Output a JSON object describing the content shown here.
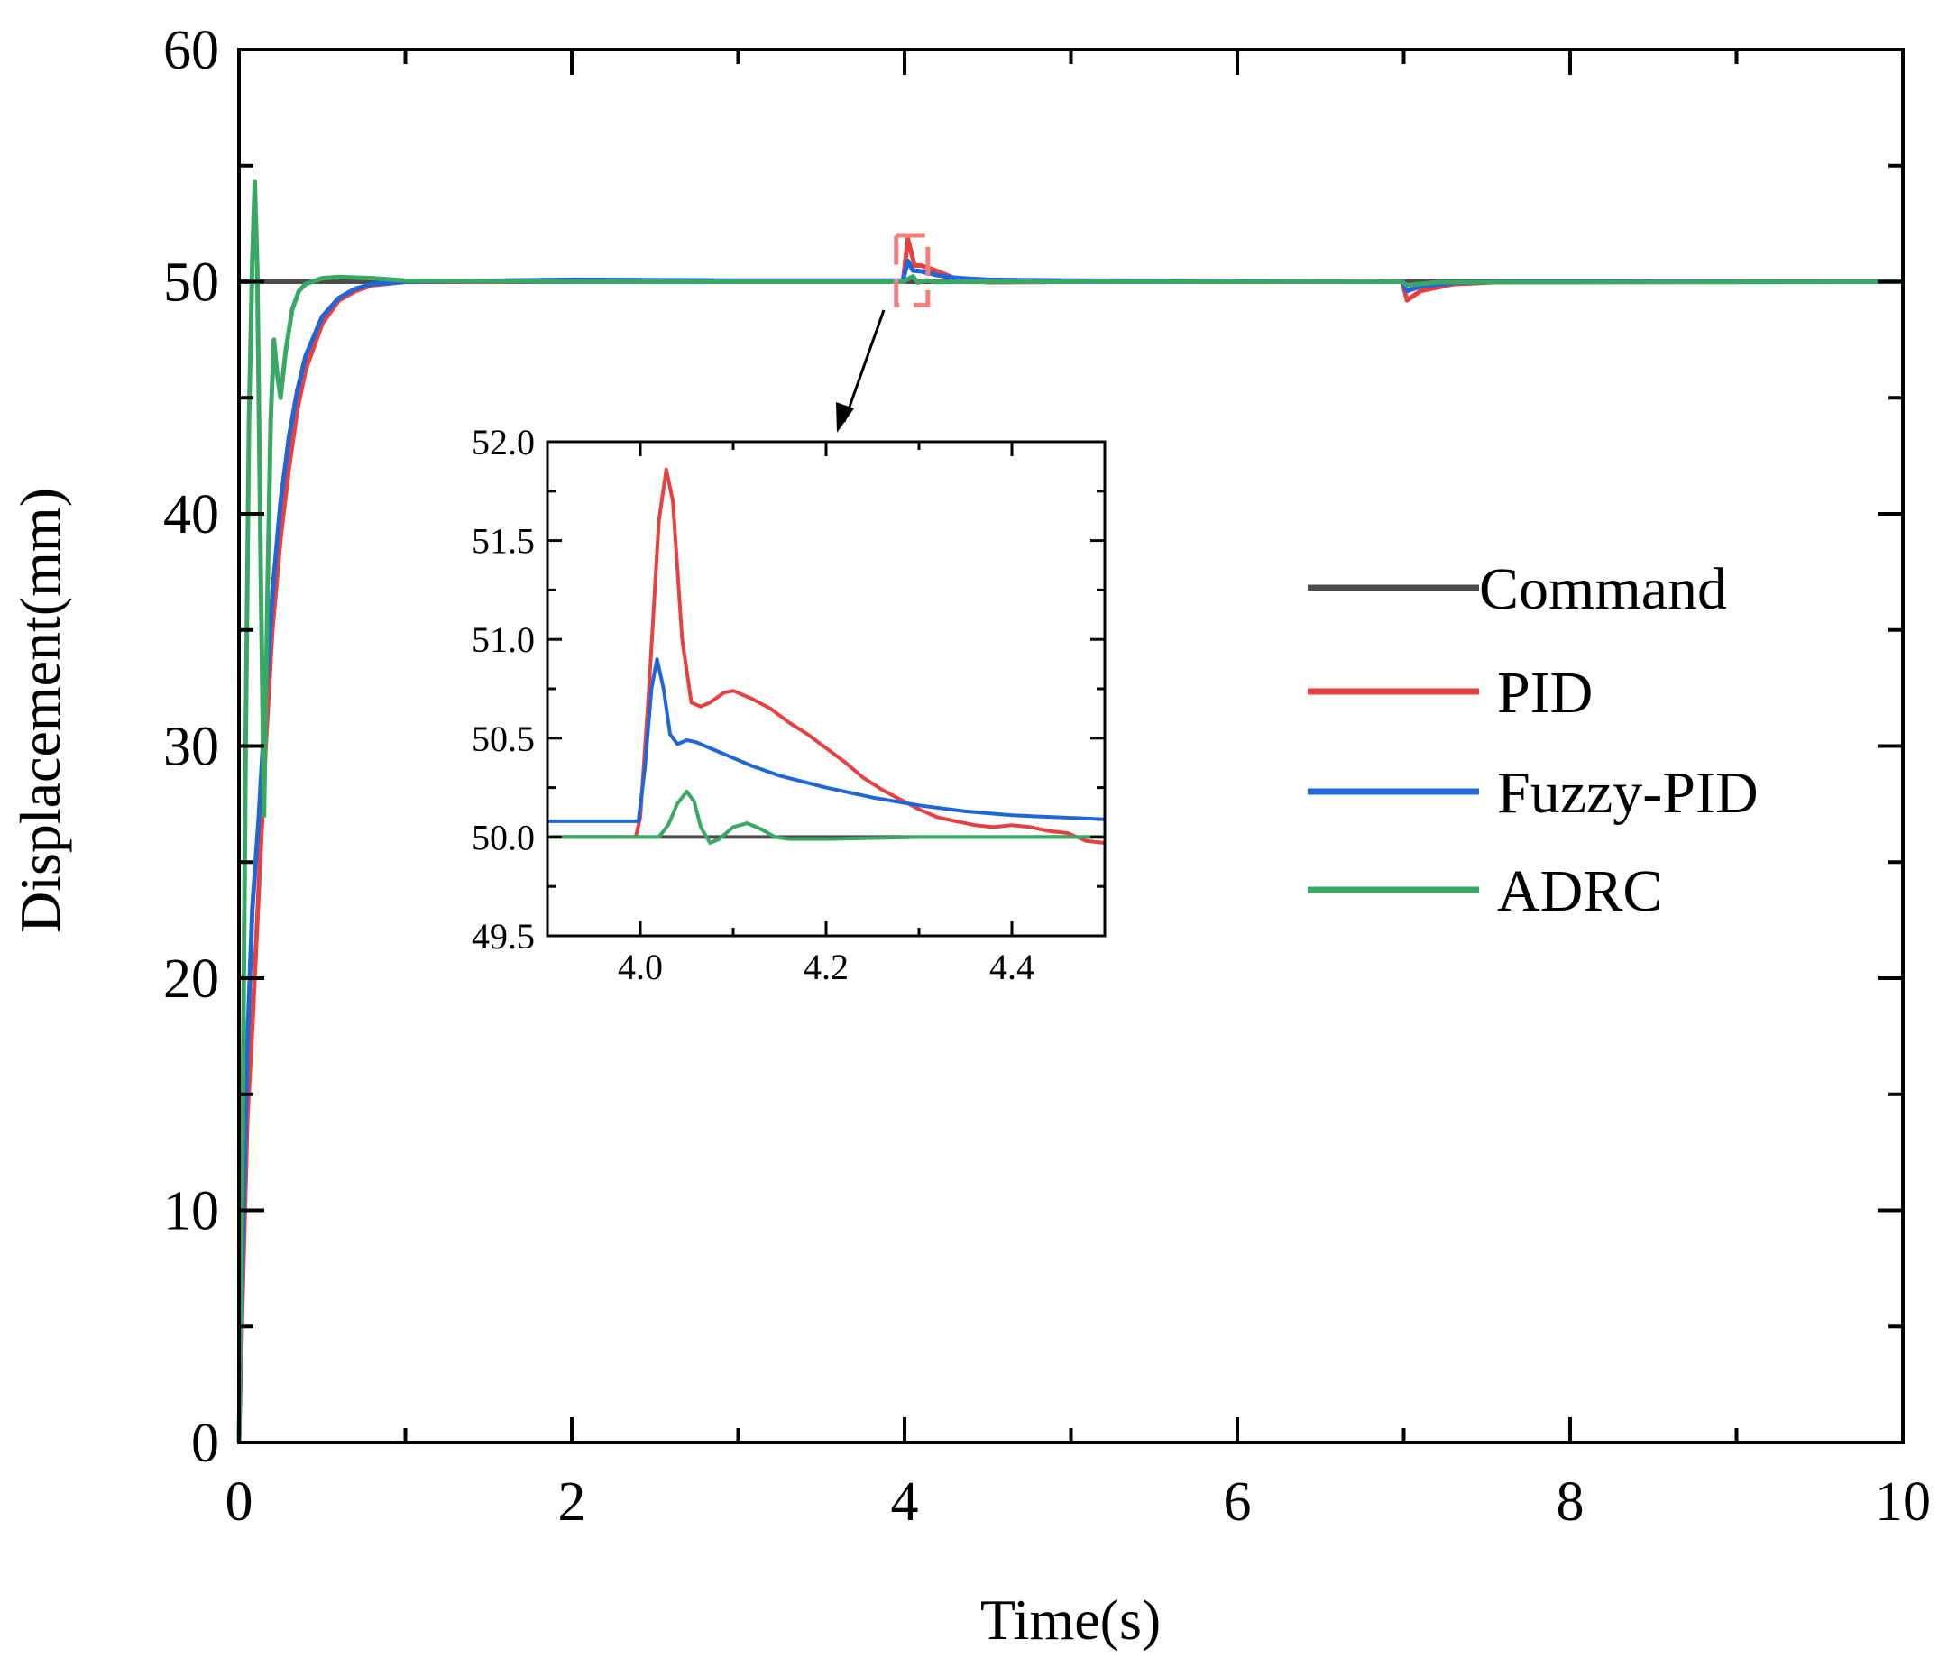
{
  "chart_data": {
    "type": "line",
    "xlabel": "Time(s)",
    "ylabel": "Displacement(mm)",
    "xlim": [
      0,
      10
    ],
    "ylim": [
      0,
      60
    ],
    "xticks": [
      "0",
      "2",
      "4",
      "6",
      "8",
      "10"
    ],
    "yticks": [
      "0",
      "10",
      "20",
      "30",
      "40",
      "50",
      "60"
    ],
    "grid": false,
    "legend_position": "right",
    "series": [
      {
        "name": "Command",
        "color": "#4d4d4d",
        "points": [
          [
            0,
            50
          ],
          [
            4,
            50
          ],
          [
            7,
            50
          ],
          [
            10,
            50
          ]
        ]
      },
      {
        "name": "PID",
        "color": "#e84040",
        "points": [
          [
            0,
            0
          ],
          [
            0.02,
            6
          ],
          [
            0.05,
            14
          ],
          [
            0.08,
            18
          ],
          [
            0.12,
            24
          ],
          [
            0.16,
            30
          ],
          [
            0.2,
            35
          ],
          [
            0.25,
            39
          ],
          [
            0.3,
            42
          ],
          [
            0.35,
            44.5
          ],
          [
            0.4,
            46.2
          ],
          [
            0.5,
            48.2
          ],
          [
            0.6,
            49.2
          ],
          [
            0.7,
            49.6
          ],
          [
            0.8,
            49.85
          ],
          [
            1.0,
            50
          ],
          [
            1.5,
            50
          ],
          [
            2.0,
            50.05
          ],
          [
            3.0,
            50
          ],
          [
            3.99,
            50
          ],
          [
            4.02,
            51.85
          ],
          [
            4.06,
            50.7
          ],
          [
            4.1,
            50.7
          ],
          [
            4.2,
            50.45
          ],
          [
            4.3,
            50.15
          ],
          [
            4.4,
            50.05
          ],
          [
            4.5,
            49.98
          ],
          [
            5.0,
            50
          ],
          [
            6.99,
            50
          ],
          [
            7.02,
            49.2
          ],
          [
            7.1,
            49.6
          ],
          [
            7.3,
            49.9
          ],
          [
            7.6,
            50
          ],
          [
            10,
            50
          ]
        ]
      },
      {
        "name": "Fuzzy-PID",
        "color": "#1f66d9",
        "points": [
          [
            0,
            0
          ],
          [
            0.02,
            8
          ],
          [
            0.05,
            17
          ],
          [
            0.08,
            23
          ],
          [
            0.12,
            27
          ],
          [
            0.16,
            32
          ],
          [
            0.2,
            36.5
          ],
          [
            0.25,
            40.5
          ],
          [
            0.3,
            43.3
          ],
          [
            0.35,
            45.3
          ],
          [
            0.4,
            46.8
          ],
          [
            0.5,
            48.5
          ],
          [
            0.6,
            49.3
          ],
          [
            0.7,
            49.7
          ],
          [
            0.8,
            49.9
          ],
          [
            1.0,
            50
          ],
          [
            2.0,
            50.08
          ],
          [
            3.0,
            50.05
          ],
          [
            3.99,
            50.05
          ],
          [
            4.02,
            50.9
          ],
          [
            4.05,
            50.48
          ],
          [
            4.1,
            50.45
          ],
          [
            4.2,
            50.28
          ],
          [
            4.3,
            50.17
          ],
          [
            4.4,
            50.12
          ],
          [
            4.5,
            50.08
          ],
          [
            5.0,
            50.05
          ],
          [
            6.99,
            50
          ],
          [
            7.02,
            49.6
          ],
          [
            7.1,
            49.8
          ],
          [
            7.3,
            49.95
          ],
          [
            7.6,
            50
          ],
          [
            10,
            50
          ]
        ]
      },
      {
        "name": "ADRC",
        "color": "#3aa865",
        "points": [
          [
            0,
            0
          ],
          [
            0.02,
            12
          ],
          [
            0.04,
            30
          ],
          [
            0.06,
            44
          ],
          [
            0.08,
            51
          ],
          [
            0.095,
            54.3
          ],
          [
            0.11,
            50.5
          ],
          [
            0.13,
            38
          ],
          [
            0.15,
            27
          ],
          [
            0.17,
            36
          ],
          [
            0.19,
            44
          ],
          [
            0.21,
            47.5
          ],
          [
            0.23,
            46
          ],
          [
            0.25,
            45
          ],
          [
            0.28,
            47
          ],
          [
            0.32,
            48.8
          ],
          [
            0.36,
            49.6
          ],
          [
            0.4,
            49.9
          ],
          [
            0.5,
            50.15
          ],
          [
            0.6,
            50.2
          ],
          [
            0.8,
            50.15
          ],
          [
            1.0,
            50.05
          ],
          [
            2.0,
            50
          ],
          [
            3.99,
            50
          ],
          [
            4.05,
            50.23
          ],
          [
            4.08,
            49.97
          ],
          [
            4.13,
            50.06
          ],
          [
            4.18,
            49.99
          ],
          [
            4.5,
            50
          ],
          [
            6.99,
            50
          ],
          [
            7.02,
            49.85
          ],
          [
            7.2,
            49.98
          ],
          [
            10,
            50
          ]
        ]
      }
    ],
    "inset": {
      "xlim": [
        3.9,
        4.5
      ],
      "ylim": [
        49.5,
        52.0
      ],
      "xticks": [
        "4.0",
        "4.2",
        "4.4"
      ],
      "yticks": [
        "49.5",
        "50.0",
        "50.5",
        "51.0",
        "51.5",
        "52.0"
      ],
      "zoom_region": {
        "x": [
          3.95,
          4.14
        ],
        "y": [
          49.0,
          52.0
        ]
      },
      "series": [
        {
          "name": "Command",
          "color": "#4d4d4d",
          "points": [
            [
              3.9,
              50
            ],
            [
              4.5,
              50
            ]
          ]
        },
        {
          "name": "PID",
          "color": "#e84040",
          "points": [
            [
              3.9,
              50
            ],
            [
              3.995,
              50
            ],
            [
              4.0,
              50.1
            ],
            [
              4.01,
              50.8
            ],
            [
              4.02,
              51.6
            ],
            [
              4.028,
              51.86
            ],
            [
              4.035,
              51.7
            ],
            [
              4.045,
              51.0
            ],
            [
              4.055,
              50.68
            ],
            [
              4.065,
              50.66
            ],
            [
              4.075,
              50.68
            ],
            [
              4.09,
              50.73
            ],
            [
              4.1,
              50.74
            ],
            [
              4.12,
              50.7
            ],
            [
              4.14,
              50.65
            ],
            [
              4.16,
              50.58
            ],
            [
              4.18,
              50.52
            ],
            [
              4.2,
              50.45
            ],
            [
              4.22,
              50.38
            ],
            [
              4.24,
              50.3
            ],
            [
              4.26,
              50.24
            ],
            [
              4.28,
              50.19
            ],
            [
              4.3,
              50.14
            ],
            [
              4.32,
              50.1
            ],
            [
              4.34,
              50.08
            ],
            [
              4.36,
              50.06
            ],
            [
              4.38,
              50.05
            ],
            [
              4.4,
              50.06
            ],
            [
              4.42,
              50.05
            ],
            [
              4.44,
              50.03
            ],
            [
              4.46,
              50.02
            ],
            [
              4.48,
              49.98
            ],
            [
              4.5,
              49.97
            ]
          ]
        },
        {
          "name": "Fuzzy-PID",
          "color": "#1f66d9",
          "points": [
            [
              3.9,
              50.08
            ],
            [
              3.998,
              50.08
            ],
            [
              4.005,
              50.35
            ],
            [
              4.012,
              50.75
            ],
            [
              4.018,
              50.9
            ],
            [
              4.025,
              50.75
            ],
            [
              4.032,
              50.52
            ],
            [
              4.04,
              50.47
            ],
            [
              4.05,
              50.49
            ],
            [
              4.06,
              50.48
            ],
            [
              4.08,
              50.44
            ],
            [
              4.1,
              50.4
            ],
            [
              4.12,
              50.36
            ],
            [
              4.15,
              50.31
            ],
            [
              4.2,
              50.25
            ],
            [
              4.25,
              50.2
            ],
            [
              4.3,
              50.16
            ],
            [
              4.35,
              50.13
            ],
            [
              4.4,
              50.11
            ],
            [
              4.45,
              50.1
            ],
            [
              4.5,
              50.09
            ]
          ]
        },
        {
          "name": "ADRC",
          "color": "#3aa865",
          "points": [
            [
              3.9,
              50
            ],
            [
              4.02,
              50
            ],
            [
              4.03,
              50.06
            ],
            [
              4.04,
              50.17
            ],
            [
              4.05,
              50.23
            ],
            [
              4.058,
              50.18
            ],
            [
              4.065,
              50.05
            ],
            [
              4.075,
              49.97
            ],
            [
              4.085,
              49.99
            ],
            [
              4.1,
              50.05
            ],
            [
              4.115,
              50.07
            ],
            [
              4.13,
              50.04
            ],
            [
              4.145,
              50.0
            ],
            [
              4.16,
              49.99
            ],
            [
              4.2,
              49.99
            ],
            [
              4.3,
              50.0
            ],
            [
              4.5,
              50.0
            ]
          ]
        }
      ]
    }
  }
}
